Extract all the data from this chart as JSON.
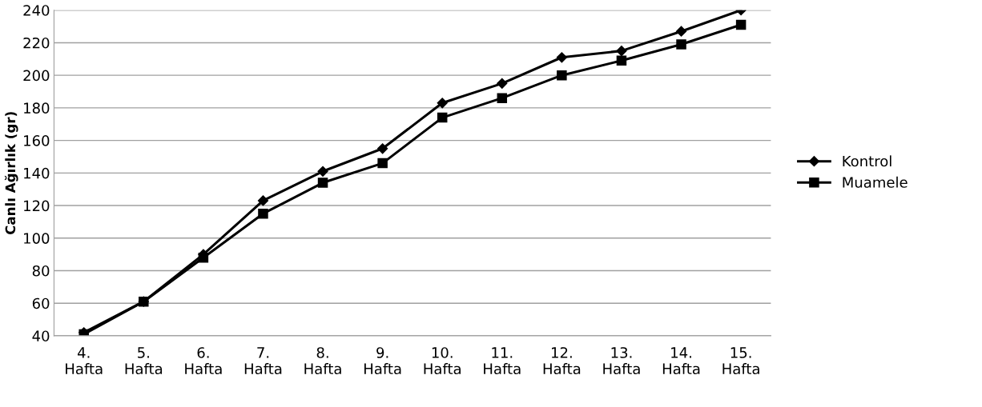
{
  "chart_data": {
    "type": "line",
    "ylabel": "Canlı Ağırlık (gr)",
    "categories": [
      "4.\nHafta",
      "5.\nHafta",
      "6.\nHafta",
      "7.\nHafta",
      "8.\nHafta",
      "9.\nHafta",
      "10.\nHafta",
      "11.\nHafta",
      "12.\nHafta",
      "13.\nHafta",
      "14.\nHafta",
      "15.\nHafta"
    ],
    "series": [
      {
        "name": "Kontrol",
        "color": "#000000",
        "marker": "diamond",
        "values": [
          42,
          61,
          90,
          123,
          141,
          155,
          183,
          195,
          211,
          215,
          227,
          240
        ]
      },
      {
        "name": "Muamele",
        "color": "#000000",
        "marker": "square",
        "values": [
          41,
          61,
          88,
          115,
          134,
          146,
          174,
          186,
          200,
          209,
          219,
          231
        ]
      }
    ],
    "ylim": [
      40,
      240
    ],
    "yticks": [
      40,
      60,
      80,
      100,
      120,
      140,
      160,
      180,
      200,
      220,
      240
    ],
    "grid": "y",
    "legend": "right",
    "line_style": "solid"
  }
}
